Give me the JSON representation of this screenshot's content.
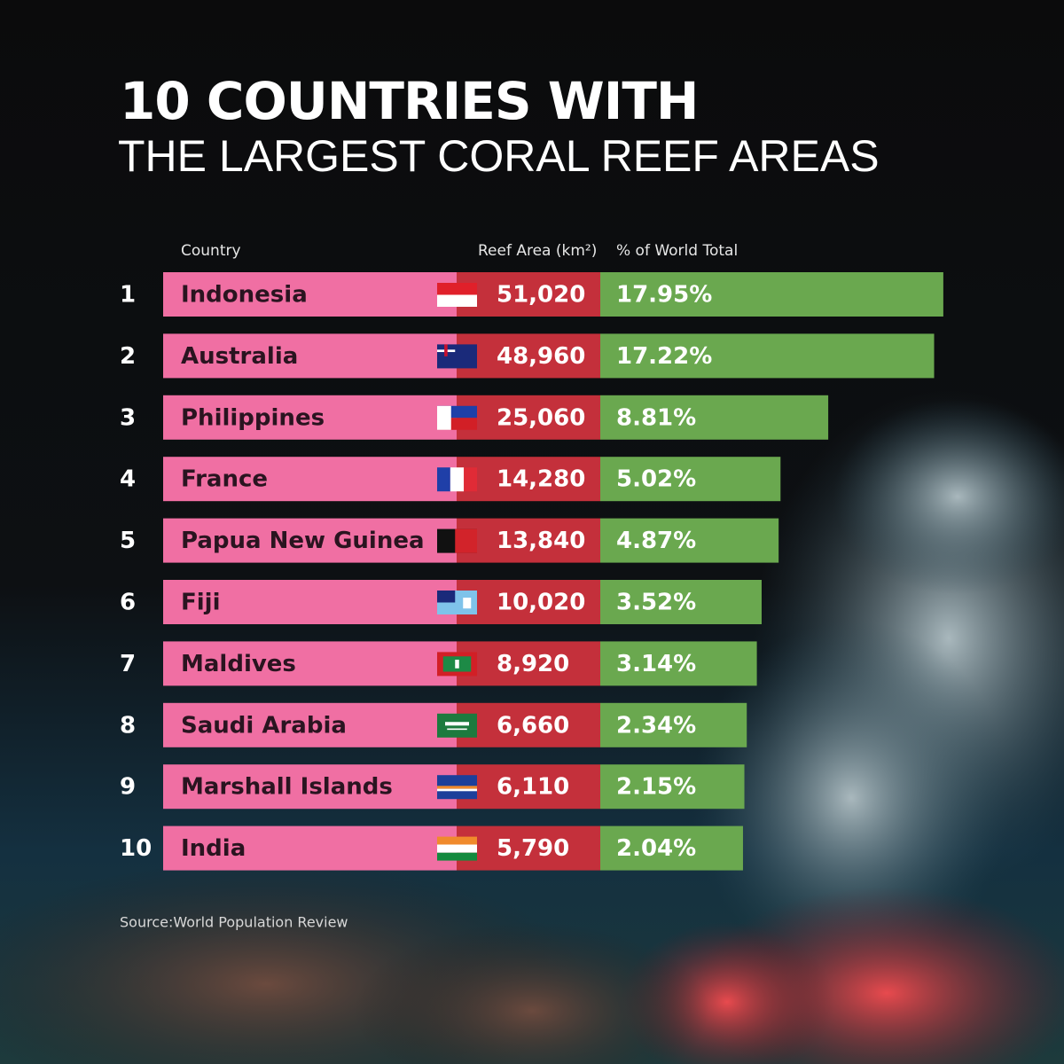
{
  "chart_data": {
    "type": "bar",
    "title": "10 COUNTRIES WITH",
    "subtitle": "THE LARGEST CORAL REEF AREAS",
    "columns": [
      "Country",
      "Reef Area (km²)",
      "% of World Total"
    ],
    "ranks": [
      1,
      2,
      3,
      4,
      5,
      6,
      7,
      8,
      9,
      10
    ],
    "categories": [
      "Indonesia",
      "Australia",
      "Philippines",
      "France",
      "Papua New Guinea",
      "Fiji",
      "Maldives",
      "Saudi Arabia",
      "Marshall Islands",
      "India"
    ],
    "series": [
      {
        "name": "Reef Area (km²)",
        "color": "#c4303b",
        "values": [
          51020,
          48960,
          25060,
          14280,
          13840,
          10020,
          8920,
          6660,
          6110,
          5790
        ],
        "value_labels": [
          "51,020",
          "48,960",
          "25,060",
          "14,280",
          "13,840",
          "10,020",
          "8,920",
          "6,660",
          "6,110",
          "5,790"
        ]
      },
      {
        "name": "% of World Total",
        "color": "#6aa84f",
        "values": [
          17.95,
          17.22,
          8.81,
          5.02,
          4.87,
          3.52,
          3.14,
          2.34,
          2.15,
          2.04
        ],
        "value_labels": [
          "17.95%",
          "17.22%",
          "8.81%",
          "5.02%",
          "4.87%",
          "3.52%",
          "3.14%",
          "2.34%",
          "2.15%",
          "2.04%"
        ]
      }
    ],
    "category_color": "#f06fa3",
    "source": "Source:World Population Review"
  }
}
